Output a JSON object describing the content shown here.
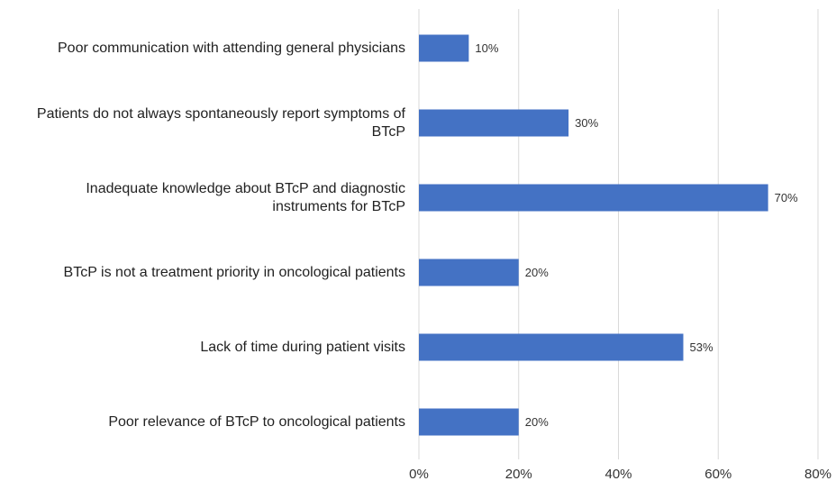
{
  "chart_data": {
    "type": "bar",
    "orientation": "horizontal",
    "categories": [
      "Poor communication with attending general physicians",
      "Patients do not always spontaneously report symptoms of BTcP",
      "Inadequate knowledge about BTcP and diagnostic instruments for BTcP",
      "BTcP is not a treatment priority in oncological patients",
      "Lack of time during patient visits",
      "Poor relevance of BTcP to oncological patients"
    ],
    "values": [
      10,
      30,
      70,
      20,
      53,
      20
    ],
    "value_labels": [
      "10%",
      "30%",
      "70%",
      "20%",
      "53%",
      "20%"
    ],
    "color": "#4472c4",
    "xlim": [
      0,
      80
    ],
    "xticks": [
      {
        "value": 0,
        "label": "0%"
      },
      {
        "value": 20,
        "label": "20%"
      },
      {
        "value": 40,
        "label": "40%"
      },
      {
        "value": 60,
        "label": "60%"
      },
      {
        "value": 80,
        "label": "80%"
      }
    ],
    "grid": true
  }
}
